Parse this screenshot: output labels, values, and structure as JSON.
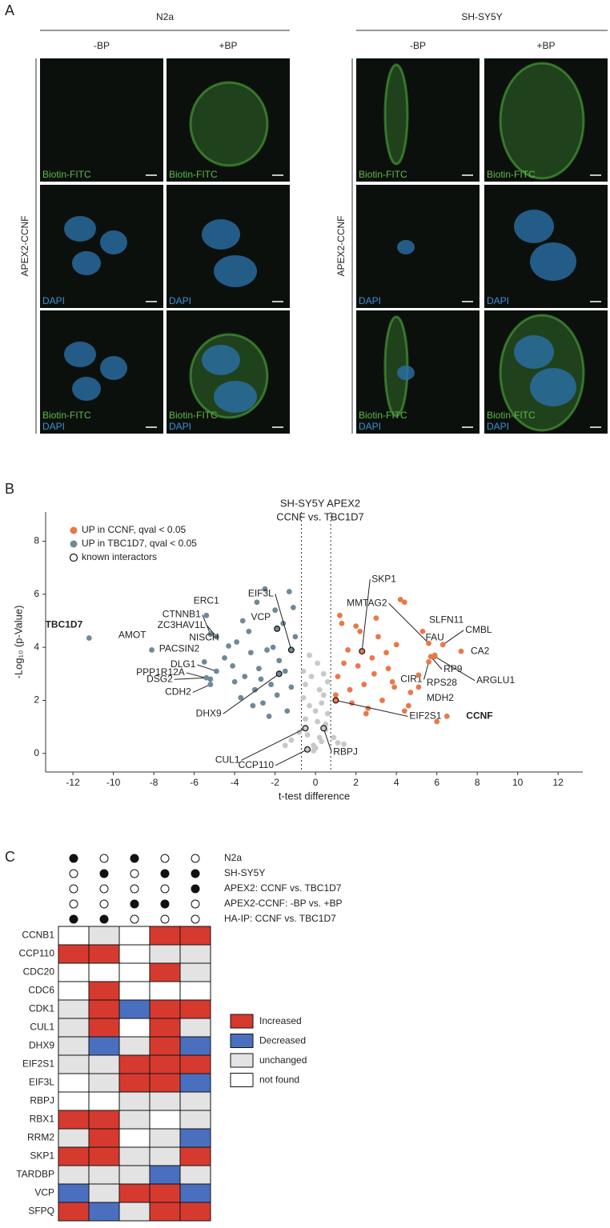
{
  "panel_a": {
    "label": "A",
    "groups": [
      {
        "name": "N2a",
        "conditions": [
          "-BP",
          "+BP"
        ]
      },
      {
        "name": "SH-SY5Y",
        "conditions": [
          "-BP",
          "+BP"
        ]
      }
    ],
    "row_label": "APEX2-CCNF",
    "channels": [
      [
        "Biotin-FITC"
      ],
      [
        "DAPI"
      ],
      [
        "Biotin-FITC",
        "DAPI"
      ]
    ]
  },
  "panel_b_label": "B",
  "chart_data": {
    "type": "scatter",
    "title": [
      "SH-SY5Y APEX2",
      "CCNF vs. TBC1D7"
    ],
    "xlabel": "t-test difference",
    "ylabel": "-Log₁₀ (p-Value)",
    "xlim": [
      -13.35,
      13.22
    ],
    "ylim": [
      -0.7,
      9.1
    ],
    "xticks": [
      -12,
      -10,
      -8,
      -6,
      -4,
      -2,
      0,
      2,
      4,
      6,
      8,
      10,
      12
    ],
    "yticks": [
      0,
      2,
      4,
      6,
      8
    ],
    "thresholds": [
      -0.7,
      0.75
    ],
    "known_label": "known interactors",
    "series": [
      {
        "name": "UP in CCNF, qval < 0.05",
        "color": "#e8794a",
        "x": [
          1.2,
          2.0,
          3.1,
          4.2,
          1.6,
          2.8,
          3.6,
          1.1,
          2.4,
          4.7,
          3.3,
          1.8,
          2.6,
          4.0,
          1.4,
          3.0,
          2.2,
          3.8,
          1.0,
          4.4,
          2.9,
          1.7,
          3.5,
          2.1,
          4.6,
          1.3,
          3.9,
          2.5,
          6.0,
          4.4
        ],
        "values": [
          5.2,
          4.8,
          4.4,
          5.8,
          3.9,
          3.6,
          3.2,
          2.9,
          2.6,
          2.3,
          2.0,
          1.9,
          1.7,
          4.1,
          3.4,
          5.1,
          4.6,
          2.7,
          2.2,
          1.6,
          3.0,
          2.4,
          3.8,
          3.3,
          1.8,
          4.9,
          2.5,
          1.5,
          1.2,
          5.7
        ]
      },
      {
        "name": "UP in TBC1D7, qval < 0.05",
        "color": "#6e8a96",
        "x": [
          -3.9,
          -2.5,
          -1.3,
          -2.0,
          -3.2,
          -4.1,
          -1.6,
          -2.8,
          -3.5,
          -1.1,
          -2.2,
          -1.9,
          -3.0,
          -4.5,
          -2.6,
          -1.4,
          -3.7,
          -2.3,
          -1.8,
          -1.0,
          -3.3,
          -2.9,
          -4.0,
          -1.5,
          -2.1,
          -3.1,
          -1.2,
          -2.7,
          -3.6,
          -2.4
        ],
        "values": [
          4.2,
          6.2,
          6.1,
          5.4,
          3.8,
          3.3,
          4.9,
          3.2,
          2.9,
          5.5,
          2.6,
          2.2,
          2.4,
          3.6,
          1.9,
          1.6,
          2.1,
          1.4,
          3.5,
          4.4,
          4.6,
          5.7,
          2.7,
          3.1,
          4.0,
          1.8,
          2.5,
          2.8,
          5.0,
          3.9
        ]
      },
      {
        "color": "#c8c8c8",
        "x": [
          -0.5,
          -0.3,
          0.1,
          0.4,
          -0.6,
          0.6,
          0.2,
          -0.1,
          0.5,
          -0.4,
          0.0,
          0.3,
          -0.2,
          0.6,
          -0.5,
          0.1,
          -0.8,
          0.9,
          -1.2,
          1.1,
          -1.5,
          1.4,
          0.2,
          -0.3,
          0.4,
          -0.6,
          0.5,
          0.0,
          -0.1,
          0.3
        ],
        "values": [
          2.6,
          1.8,
          1.2,
          2.2,
          3.1,
          1.5,
          0.6,
          0.3,
          0.9,
          0.7,
          0.2,
          1.9,
          2.9,
          2.7,
          1.3,
          3.4,
          0.8,
          0.6,
          0.5,
          0.4,
          0.3,
          0.35,
          2.4,
          3.7,
          3.0,
          2.1,
          1.1,
          1.6,
          0.1,
          0.45
        ]
      }
    ],
    "labeled": [
      {
        "text": "TBC1D7",
        "x": -11.2,
        "y": 4.35,
        "bold": true
      },
      {
        "text": "AMOT",
        "x": -8.1,
        "y": 3.9
      },
      {
        "text": "ERC1",
        "x": -5.4,
        "y": 5.2
      },
      {
        "text": "CTNNB1",
        "x": -5.2,
        "y": 4.5
      },
      {
        "text": "ZC3HAV1L",
        "x": -4.9,
        "y": 4.4
      },
      {
        "text": "NISCH",
        "x": -4.3,
        "y": 4.05
      },
      {
        "text": "PACSIN2",
        "x": -5.5,
        "y": 3.45
      },
      {
        "text": "DLG1",
        "x": -4.9,
        "y": 3.1
      },
      {
        "text": "PPP1R12A",
        "x": -5.2,
        "y": 2.8
      },
      {
        "text": "DSG2",
        "x": -5.4,
        "y": 2.85
      },
      {
        "text": "CDH2",
        "x": -5.2,
        "y": 2.6
      },
      {
        "text": "DHX9",
        "x": -1.8,
        "y": 3.0,
        "known": true
      },
      {
        "text": "VCP",
        "x": -1.9,
        "y": 4.7,
        "known": true
      },
      {
        "text": "EIF3L",
        "x": -1.2,
        "y": 3.9,
        "known": true
      },
      {
        "text": "CUL1",
        "x": -0.5,
        "y": 0.95,
        "known": true
      },
      {
        "text": "CCP110",
        "x": -0.4,
        "y": 0.15,
        "known": true
      },
      {
        "text": "RBPJ",
        "x": 0.4,
        "y": 0.95,
        "known": true
      },
      {
        "text": "SKP1",
        "x": 2.3,
        "y": 3.85,
        "known": true
      },
      {
        "text": "EIF2S1",
        "x": 1.0,
        "y": 2.0,
        "known": true
      },
      {
        "text": "MMTAG2",
        "x": 5.6,
        "y": 4.15
      },
      {
        "text": "SLFN11",
        "x": 5.3,
        "y": 4.6
      },
      {
        "text": "FAU",
        "x": 5.9,
        "y": 3.7
      },
      {
        "text": "CMBL",
        "x": 6.3,
        "y": 4.1
      },
      {
        "text": "CA2",
        "x": 7.2,
        "y": 3.85
      },
      {
        "text": "RP9",
        "x": 5.7,
        "y": 3.65
      },
      {
        "text": "ARGLU1",
        "x": 5.9,
        "y": 3.65
      },
      {
        "text": "CIR1",
        "x": 5.6,
        "y": 3.45
      },
      {
        "text": "RPS28",
        "x": 5.1,
        "y": 2.95
      },
      {
        "text": "MDH2",
        "x": 5.1,
        "y": 2.5
      },
      {
        "text": "CCNF",
        "x": 6.5,
        "y": 1.4,
        "bold": true
      }
    ]
  },
  "panel_c": {
    "label": "C",
    "conditions": [
      "N2a",
      "SH-SY5Y",
      "APEX2: CCNF vs. TBC1D7",
      "APEX2-CCNF: -BP vs. +BP",
      "HA-IP: CCNF vs. TBC1D7"
    ],
    "dots": [
      [
        true,
        false,
        true,
        false,
        false
      ],
      [
        false,
        true,
        false,
        true,
        true
      ],
      [
        false,
        false,
        false,
        false,
        true
      ],
      [
        false,
        false,
        true,
        true,
        false
      ],
      [
        true,
        true,
        false,
        false,
        false
      ]
    ],
    "legend": [
      {
        "name": "Increased",
        "color": "#d63a2f"
      },
      {
        "name": "Decreased",
        "color": "#4a6fbf"
      },
      {
        "name": "unchanged",
        "color": "#e3e3e3"
      },
      {
        "name": "not found",
        "color": "#ffffff"
      }
    ],
    "genes": [
      "CCNB1",
      "CCP110",
      "CDC20",
      "CDC6",
      "CDK1",
      "CUL1",
      "DHX9",
      "EIF2S1",
      "EIF3L",
      "RBPJ",
      "RBX1",
      "RRM2",
      "SKP1",
      "TARDBP",
      "VCP",
      "SFPQ"
    ],
    "status": [
      [
        3,
        2,
        3,
        0,
        0
      ],
      [
        0,
        0,
        3,
        2,
        2
      ],
      [
        3,
        3,
        3,
        0,
        2
      ],
      [
        3,
        0,
        3,
        3,
        3
      ],
      [
        2,
        0,
        1,
        0,
        0
      ],
      [
        2,
        0,
        3,
        0,
        2
      ],
      [
        2,
        1,
        2,
        0,
        1
      ],
      [
        2,
        2,
        0,
        0,
        0
      ],
      [
        3,
        2,
        0,
        0,
        1
      ],
      [
        3,
        3,
        2,
        2,
        2
      ],
      [
        0,
        0,
        2,
        3,
        2
      ],
      [
        2,
        0,
        3,
        2,
        1
      ],
      [
        0,
        0,
        2,
        2,
        0
      ],
      [
        2,
        2,
        2,
        1,
        2
      ],
      [
        1,
        2,
        0,
        0,
        1
      ],
      [
        0,
        1,
        2,
        0,
        0
      ]
    ]
  }
}
